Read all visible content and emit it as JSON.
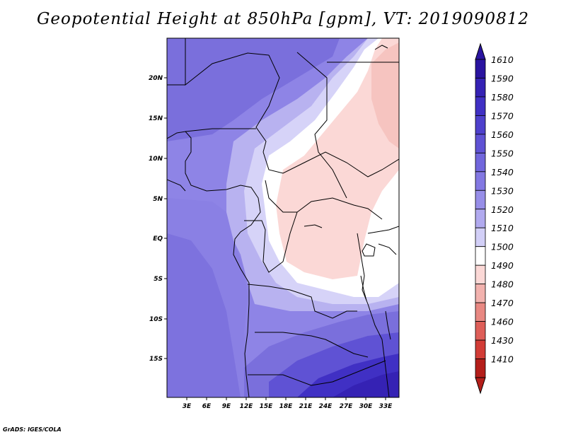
{
  "title": "Geopotential Height at 850hPa [gpm], VT: 2019090812",
  "credit": "GrADS: IGES/COLA",
  "axes": {
    "lat_labels": [
      "20N",
      "15N",
      "10N",
      "5N",
      "EQ",
      "5S",
      "10S",
      "15S"
    ],
    "lon_labels": [
      "3E",
      "6E",
      "9E",
      "12E",
      "15E",
      "18E",
      "21E",
      "24E",
      "27E",
      "30E",
      "33E"
    ]
  },
  "colorbar": {
    "labels": [
      "1610",
      "1590",
      "1580",
      "1570",
      "1560",
      "1550",
      "1540",
      "1530",
      "1520",
      "1510",
      "1500",
      "1490",
      "1480",
      "1470",
      "1460",
      "1430",
      "1410"
    ],
    "colors": [
      "#2a14a0",
      "#3522b4",
      "#4030c4",
      "#4e40cc",
      "#5f52d4",
      "#7166dc",
      "#8378e2",
      "#978ee8",
      "#b1aaef",
      "#d2cff7",
      "#ffffff",
      "#fbd8d6",
      "#f2b2ae",
      "#e88882",
      "#de5e58",
      "#d23c36",
      "#b41e1a"
    ]
  },
  "map_colors": {
    "deep_blue": "#3a2ab8",
    "mid_blue": "#6a5ed8",
    "light_blue": "#8e84e6",
    "pale_blue": "#b8b2f0",
    "faint_blue": "#d6d3f8",
    "white": "#ffffff",
    "pink": "#fbd8d6",
    "salmon": "#f6c4c0"
  }
}
